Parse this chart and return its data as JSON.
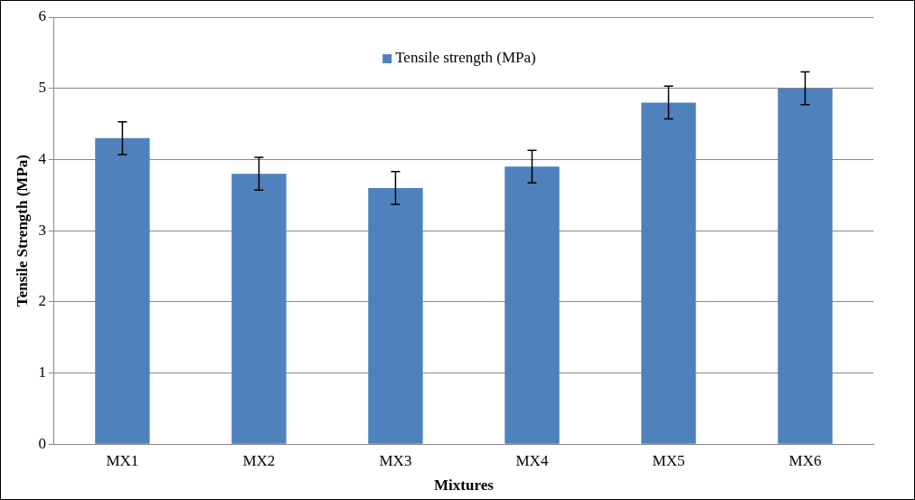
{
  "chart_data": {
    "type": "bar",
    "xlabel": "Mixtures",
    "ylabel": "Tensile Strength (MPa)",
    "categories": [
      "MX1",
      "MX2",
      "MX3",
      "MX4",
      "MX5",
      "MX6"
    ],
    "series": [
      {
        "name": "Tensile strength (MPa)",
        "color": "#4f81bd",
        "values": [
          4.3,
          3.8,
          3.6,
          3.9,
          4.8,
          5.0
        ],
        "errors": [
          0.23,
          0.23,
          0.23,
          0.23,
          0.23,
          0.23
        ]
      }
    ],
    "ylim": [
      0,
      6
    ],
    "yticks": [
      0,
      1,
      2,
      3,
      4,
      5,
      6
    ],
    "grid": "y",
    "legend": "top"
  }
}
